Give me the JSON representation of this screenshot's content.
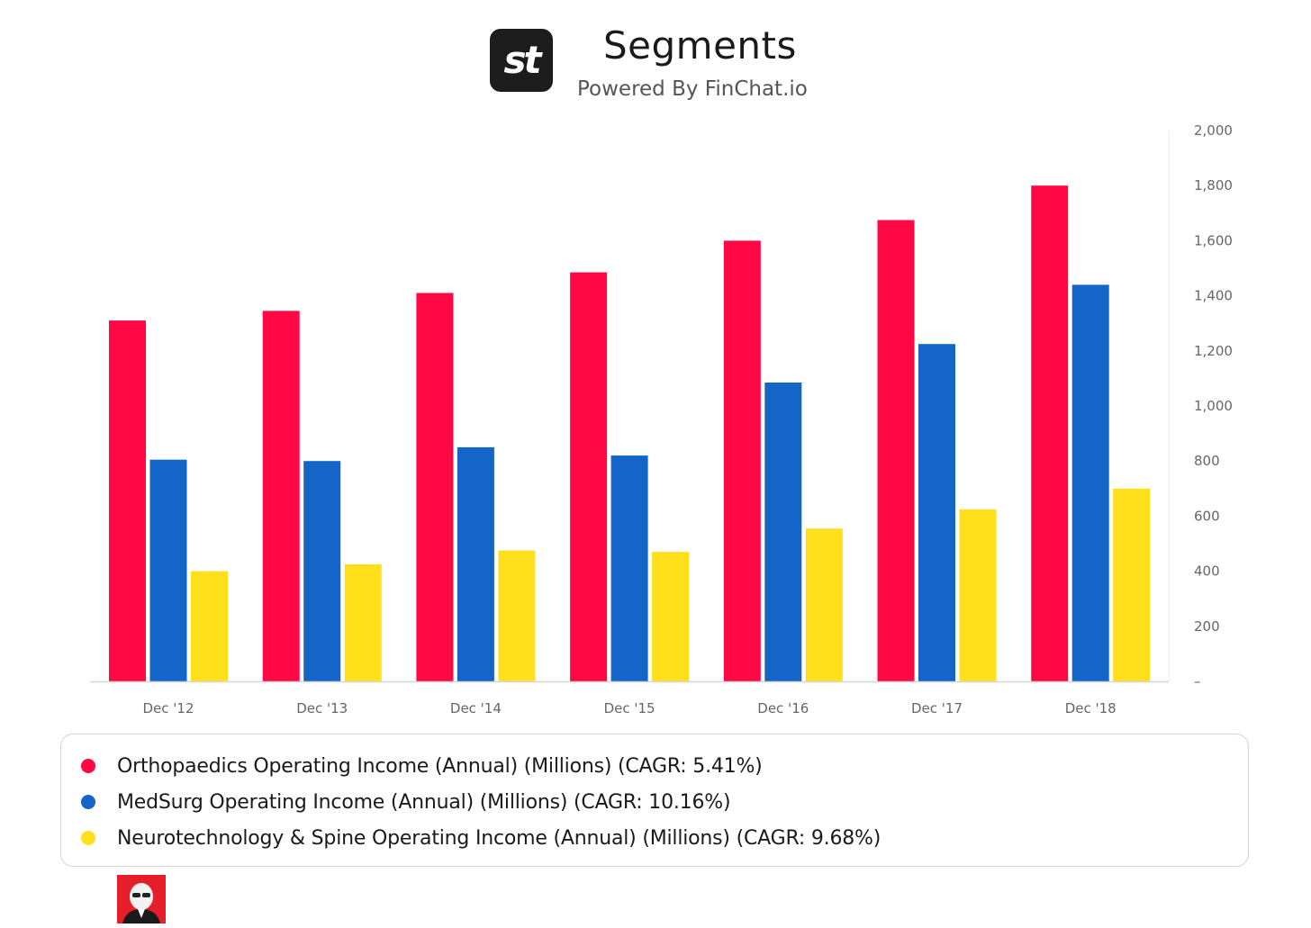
{
  "header": {
    "logo_text": "st",
    "title": "Segments",
    "subtitle": "Powered By FinChat.io"
  },
  "colors": {
    "orthopaedics": "#ff0844",
    "medsurg": "#1565c8",
    "neurotech": "#ffe01b",
    "axis": "#d6d6d6",
    "tick_text": "#666666"
  },
  "chart_data": {
    "type": "bar",
    "categories": [
      "Dec '12",
      "Dec '13",
      "Dec '14",
      "Dec '15",
      "Dec '16",
      "Dec '17",
      "Dec '18"
    ],
    "series": [
      {
        "name": "Orthopaedics Operating Income (Annual) (Millions) (CAGR: 5.41%)",
        "color": "#ff0844",
        "values": [
          1310,
          1345,
          1410,
          1485,
          1600,
          1675,
          1800
        ]
      },
      {
        "name": "MedSurg Operating Income (Annual) (Millions) (CAGR: 10.16%)",
        "color": "#1565c8",
        "values": [
          805,
          800,
          850,
          820,
          1085,
          1225,
          1440
        ]
      },
      {
        "name": "Neurotechnology & Spine Operating Income (Annual) (Millions) (CAGR: 9.68%)",
        "color": "#ffe01b",
        "values": [
          400,
          425,
          475,
          470,
          555,
          625,
          700
        ]
      }
    ],
    "y_ticks": [
      "–",
      "200",
      "400",
      "600",
      "800",
      "1,000",
      "1,200",
      "1,400",
      "1,600",
      "1,800",
      "2,000"
    ],
    "ylim": [
      0,
      2000
    ],
    "y_axis_side": "right",
    "grid": false,
    "legend_position": "bottom"
  },
  "legend": {
    "items": [
      {
        "label": "Orthopaedics Operating Income (Annual) (Millions) (CAGR: 5.41%)",
        "color": "#ff0844"
      },
      {
        "label": "MedSurg Operating Income (Annual) (Millions) (CAGR: 10.16%)",
        "color": "#1565c8"
      },
      {
        "label": "Neurotechnology & Spine Operating Income (Annual) (Millions) (CAGR: 9.68%)",
        "color": "#ffe01b"
      }
    ]
  },
  "footer": {
    "avatar_icon": "avatar-portrait-icon"
  }
}
